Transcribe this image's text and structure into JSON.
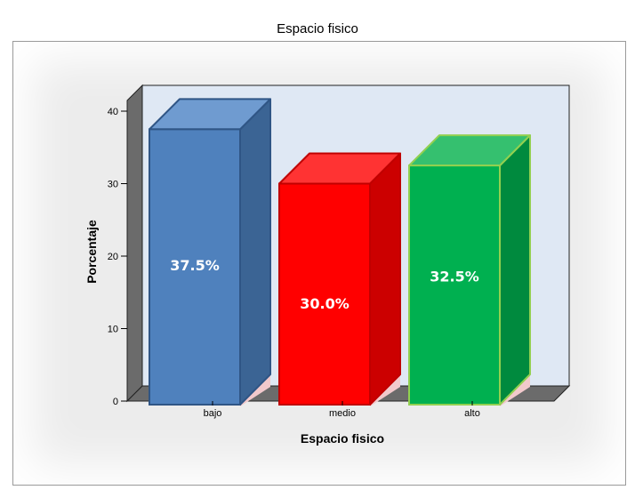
{
  "chart_data": {
    "type": "bar",
    "title": "Espacio fisico",
    "xlabel": "Espacio fisico",
    "ylabel": "Porcentaje",
    "categories": [
      "bajo",
      "medio",
      "alto"
    ],
    "values": [
      37.5,
      30.0,
      32.5
    ],
    "data_labels": [
      "37.5%",
      "30.0%",
      "32.5%"
    ],
    "yticks": [
      0,
      10,
      20,
      30,
      40
    ],
    "ylim": [
      0,
      43
    ],
    "grid": false,
    "style": "3d",
    "colors": [
      {
        "front": "#4f81bd",
        "top": "#6f9bd0",
        "side": "#3b6494",
        "edge": "#2f5585"
      },
      {
        "front": "#ff0000",
        "top": "#ff3333",
        "side": "#cc0000",
        "edge": "#c00000"
      },
      {
        "front": "#00b050",
        "top": "#35c06f",
        "side": "#008a3e",
        "edge": "#92d050"
      }
    ]
  }
}
